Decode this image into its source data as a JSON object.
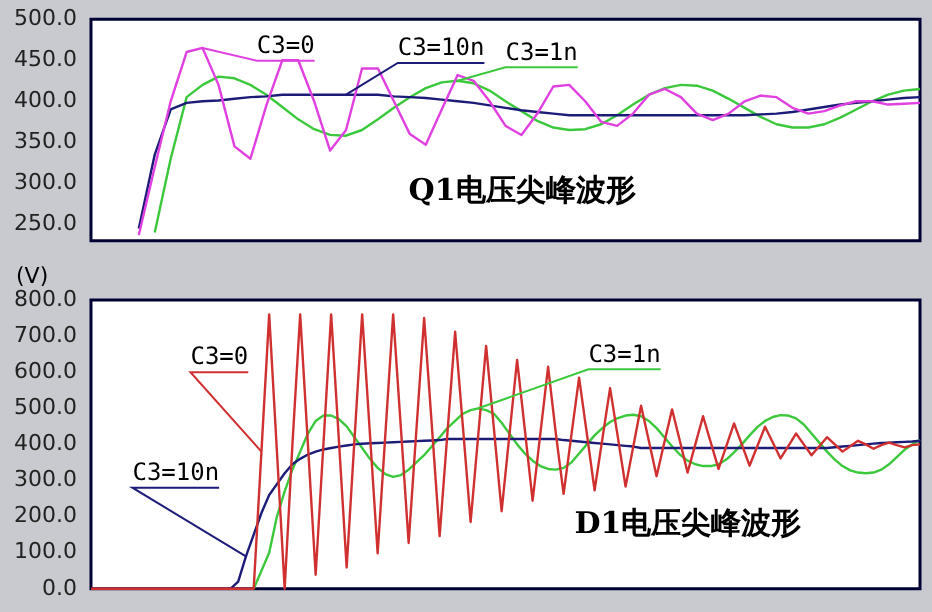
{
  "chart_data": [
    {
      "type": "line",
      "tick_labels": "y",
      "ylim": [
        230,
        500
      ],
      "yticks": [
        {
          "value": 250,
          "label": "250.0"
        },
        {
          "value": 300,
          "label": "300.0"
        },
        {
          "value": 350,
          "label": "350.0"
        },
        {
          "value": 400,
          "label": "400.0"
        },
        {
          "value": 450,
          "label": "450.0"
        },
        {
          "value": 500,
          "label": "500.0"
        }
      ],
      "annotations": [
        "Q1电压尖峰波形"
      ],
      "categories": [
        null,
        null,
        null,
        null,
        null,
        null,
        null,
        null,
        null,
        null,
        null,
        null,
        null,
        null,
        null,
        null,
        null,
        null,
        null,
        null,
        null,
        null,
        null,
        null,
        null,
        null,
        null,
        null,
        null,
        null,
        null,
        null,
        null,
        null,
        null,
        null,
        null,
        null,
        null,
        null,
        null,
        null,
        null,
        null,
        null,
        null,
        null,
        null,
        null,
        null,
        null,
        null,
        null
      ],
      "series": [
        {
          "name": "C3=0",
          "color": "#e040e0",
          "values": [
            null,
            null,
            null,
            237,
            320,
            400,
            460,
            465,
            420,
            345,
            330,
            395,
            450,
            450,
            400,
            340,
            365,
            440,
            440,
            400,
            360,
            347,
            390,
            432,
            425,
            400,
            370,
            359,
            385,
            418,
            420,
            400,
            375,
            370,
            385,
            408,
            415,
            405,
            385,
            377,
            385,
            400,
            407,
            405,
            392,
            385,
            388,
            395,
            400,
            400,
            396,
            397,
            398
          ]
        },
        {
          "name": "C3=10n",
          "color": "#1c1c78",
          "values": [
            null,
            null,
            null,
            245,
            335,
            390,
            398,
            400,
            401,
            403,
            405,
            406,
            408,
            408,
            408,
            408,
            408,
            408,
            408,
            406,
            405,
            404,
            402,
            400,
            398,
            395,
            392,
            389,
            387,
            385,
            383,
            383,
            383,
            383,
            383,
            383,
            383,
            383,
            383,
            383,
            383,
            383,
            384,
            385,
            387,
            390,
            393,
            396,
            398,
            400,
            402,
            404,
            405
          ]
        },
        {
          "name": "C3=1n",
          "color": "#3cc83c",
          "values": [
            null,
            null,
            null,
            null,
            240,
            330,
            405,
            420,
            430,
            428,
            420,
            408,
            393,
            378,
            366,
            359,
            358,
            365,
            378,
            392,
            405,
            416,
            423,
            425,
            422,
            413,
            400,
            388,
            376,
            368,
            365,
            366,
            372,
            383,
            396,
            408,
            416,
            420,
            419,
            413,
            403,
            392,
            381,
            372,
            368,
            368,
            372,
            380,
            390,
            400,
            408,
            413,
            415
          ]
        }
      ]
    },
    {
      "type": "line",
      "tick_labels": "y",
      "ylabel": "(V)",
      "ylim": [
        0,
        800
      ],
      "yticks": [
        {
          "value": 0,
          "label": "0.0"
        },
        {
          "value": 100,
          "label": "100.0"
        },
        {
          "value": 200,
          "label": "200.0"
        },
        {
          "value": 300,
          "label": "300.0"
        },
        {
          "value": 400,
          "label": "400.0"
        },
        {
          "value": 500,
          "label": "500.0"
        },
        {
          "value": 600,
          "label": "600.0"
        },
        {
          "value": 700,
          "label": "700.0"
        },
        {
          "value": 800,
          "label": "800.0"
        }
      ],
      "annotations": [
        "D1电压尖峰波形"
      ],
      "categories": [
        null,
        null,
        null,
        null,
        null,
        null,
        null,
        null,
        null,
        null,
        null,
        null,
        null,
        null,
        null,
        null,
        null,
        null,
        null,
        null,
        null,
        null,
        null,
        null,
        null,
        null,
        null,
        null,
        null,
        null,
        null,
        null,
        null,
        null,
        null,
        null,
        null,
        null,
        null,
        null,
        null,
        null,
        null,
        null,
        null,
        null,
        null,
        null,
        null,
        null,
        null,
        null,
        null,
        null,
        null,
        null,
        null,
        null,
        null,
        null,
        null,
        null,
        null,
        null,
        null,
        null,
        null,
        null,
        null,
        null,
        null,
        null,
        null,
        null,
        null,
        null,
        null,
        null,
        null,
        null,
        null,
        null,
        null,
        null,
        null,
        null,
        null,
        null,
        null,
        null,
        null,
        null,
        null,
        null,
        null,
        null,
        null,
        null,
        null,
        null,
        null,
        null,
        null,
        null,
        null,
        null,
        null,
        null
      ],
      "series": [
        {
          "name": "C3=0",
          "color": "#d03030",
          "values": [
            0,
            0,
            0,
            0,
            0,
            0,
            0,
            0,
            0,
            0,
            0,
            0,
            0,
            0,
            0,
            0,
            0,
            0,
            0,
            0,
            0,
            0,
            380,
            760,
            380,
            0,
            400,
            760,
            400,
            39,
            400,
            760,
            410,
            59,
            410,
            760,
            430,
            98,
            430,
            760,
            445,
            127,
            440,
            750,
            450,
            146,
            430,
            712,
            450,
            185,
            430,
            673,
            445,
            215,
            425,
            634,
            440,
            244,
            430,
            615,
            430,
            263,
            425,
            585,
            430,
            273,
            415,
            556,
            420,
            283,
            395,
            507,
            410,
            312,
            405,
            497,
            410,
            322,
            400,
            478,
            405,
            332,
            395,
            458,
            400,
            341,
            395,
            449,
            405,
            361,
            395,
            430,
            400,
            370,
            395,
            420,
            400,
            380,
            395,
            410,
            400,
            388,
            398,
            405,
            398,
            392,
            398,
            400
          ]
        },
        {
          "name": "C3=10n",
          "color": "#1c1c78",
          "values": [
            null,
            null,
            null,
            null,
            null,
            null,
            null,
            null,
            null,
            null,
            null,
            null,
            null,
            null,
            null,
            null,
            null,
            null,
            0,
            20,
            90,
            150,
            210,
            260,
            290,
            320,
            345,
            360,
            372,
            380,
            386,
            390,
            394,
            397,
            400,
            402,
            403,
            404,
            405,
            406,
            407,
            408,
            409,
            410,
            411,
            412,
            415,
            415,
            415,
            415,
            415,
            415,
            415,
            415,
            415,
            415,
            415,
            415,
            415,
            415,
            415,
            412,
            410,
            408,
            406,
            404,
            402,
            400,
            398,
            396,
            394,
            390,
            390,
            390,
            390,
            390,
            390,
            390,
            390,
            390,
            390,
            390,
            390,
            390,
            390,
            390,
            390,
            390,
            390,
            390,
            390,
            390,
            390,
            390,
            390,
            390,
            392,
            394,
            396,
            398,
            400,
            402,
            404,
            405,
            406,
            407,
            408,
            410
          ]
        },
        {
          "name": "C3=1n",
          "color": "#3cc83c",
          "values": [
            null,
            null,
            null,
            null,
            null,
            null,
            null,
            null,
            null,
            null,
            null,
            null,
            null,
            null,
            null,
            null,
            null,
            null,
            null,
            null,
            null,
            0,
            50,
            100,
            200,
            270,
            330,
            380,
            430,
            465,
            480,
            480,
            470,
            450,
            420,
            390,
            360,
            335,
            318,
            310,
            315,
            330,
            350,
            370,
            395,
            420,
            445,
            465,
            485,
            495,
            500,
            495,
            485,
            460,
            430,
            400,
            375,
            355,
            340,
            332,
            330,
            335,
            350,
            375,
            400,
            425,
            445,
            462,
            473,
            480,
            482,
            478,
            465,
            445,
            420,
            395,
            372,
            355,
            345,
            340,
            340,
            345,
            358,
            378,
            400,
            425,
            448,
            465,
            476,
            481,
            480,
            472,
            455,
            430,
            405,
            380,
            358,
            340,
            328,
            322,
            320,
            322,
            330,
            345,
            365,
            385,
            400,
            412
          ]
        }
      ]
    }
  ]
}
